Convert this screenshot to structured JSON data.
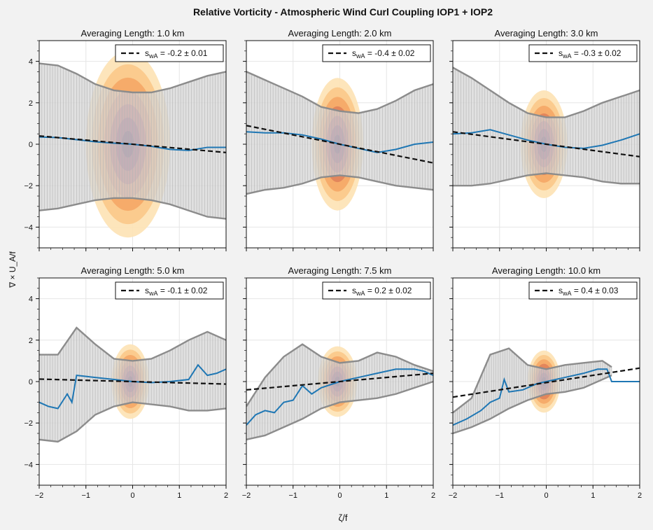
{
  "figure": {
    "title": "Relative Vorticity - Atmospheric Wind Curl Coupling IOP1 + IOP2",
    "xlabel": "ζ/f",
    "ylabel": "∇ × U_A/f"
  },
  "colors": {
    "background": "#f2f2f2",
    "panel": "#ffffff",
    "envelope_fill": "#d6d6d6",
    "envelope_line": "#8c8c8c",
    "mean_line": "#1f77b4",
    "fit_line": "#111111",
    "density": [
      "#fde3b5",
      "#fbc98a",
      "#f5a867",
      "#e1825a",
      "#b85a5c",
      "#8a3d5e",
      "#5c2853"
    ]
  },
  "chart_data": [
    {
      "type": "line",
      "title": "Averaging Length: 1.0 km",
      "legend": {
        "label": "s_wA = -0.2 ± 0.01",
        "symbol": "s",
        "subscript": "wA",
        "text": " = -0.2 ± 0.01",
        "placement": "top-right"
      },
      "xlim": [
        -2,
        2
      ],
      "ylim": [
        -5,
        5
      ],
      "xticks": [
        -2,
        -1,
        0,
        1,
        2
      ],
      "yticks": [
        -4,
        -2,
        0,
        2,
        4
      ],
      "grid": true,
      "fit": {
        "slope": -0.2,
        "intercept": 0.0
      },
      "mean_line": {
        "x": [
          -2,
          -1.6,
          -1.2,
          -0.8,
          -0.4,
          0,
          0.4,
          0.8,
          1.2,
          1.6,
          2
        ],
        "y": [
          0.35,
          0.32,
          0.22,
          0.12,
          0.05,
          0.0,
          -0.1,
          -0.25,
          -0.3,
          -0.15,
          -0.15
        ]
      },
      "envelope": {
        "x": [
          -2,
          -1.6,
          -1.2,
          -0.8,
          -0.4,
          0,
          0.4,
          0.8,
          1.2,
          1.6,
          2
        ],
        "upper": [
          3.9,
          3.8,
          3.4,
          2.9,
          2.6,
          2.5,
          2.5,
          2.7,
          3.0,
          3.3,
          3.5
        ],
        "lower": [
          -3.2,
          -3.1,
          -2.9,
          -2.7,
          -2.6,
          -2.6,
          -2.7,
          -2.9,
          -3.2,
          -3.5,
          -3.6
        ]
      },
      "density": {
        "cx": -0.1,
        "cy": 0.0,
        "rx": 0.9,
        "ry": 4.5
      }
    },
    {
      "type": "line",
      "title": "Averaging Length: 2.0 km",
      "legend": {
        "label": "s_wA = -0.4 ± 0.02",
        "symbol": "s",
        "subscript": "wA",
        "text": " = -0.4 ± 0.02",
        "placement": "top-right"
      },
      "xlim": [
        -2,
        2
      ],
      "ylim": [
        -5,
        5
      ],
      "xticks": [
        -2,
        -1,
        0,
        1,
        2
      ],
      "yticks": [
        -4,
        -2,
        0,
        2,
        4
      ],
      "grid": true,
      "fit": {
        "slope": -0.45,
        "intercept": 0.0
      },
      "mean_line": {
        "x": [
          -2,
          -1.6,
          -1.2,
          -0.8,
          -0.4,
          0,
          0.4,
          0.8,
          1.2,
          1.6,
          2
        ],
        "y": [
          0.6,
          0.55,
          0.55,
          0.45,
          0.25,
          0.0,
          -0.2,
          -0.4,
          -0.25,
          0.0,
          0.1
        ]
      },
      "envelope": {
        "x": [
          -2,
          -1.6,
          -1.2,
          -0.8,
          -0.4,
          0,
          0.4,
          0.8,
          1.2,
          1.6,
          2
        ],
        "upper": [
          3.5,
          3.1,
          2.7,
          2.3,
          1.8,
          1.6,
          1.5,
          1.7,
          2.1,
          2.6,
          2.9
        ],
        "lower": [
          -2.4,
          -2.2,
          -2.1,
          -1.9,
          -1.6,
          -1.5,
          -1.6,
          -1.8,
          -2.0,
          -2.1,
          -2.2
        ]
      },
      "density": {
        "cx": -0.05,
        "cy": 0.0,
        "rx": 0.55,
        "ry": 3.2
      }
    },
    {
      "type": "line",
      "title": "Averaging Length: 3.0 km",
      "legend": {
        "label": "s_wA = -0.3 ± 0.02",
        "symbol": "s",
        "subscript": "wA",
        "text": " = -0.3 ± 0.02",
        "placement": "top-right"
      },
      "xlim": [
        -2,
        2
      ],
      "ylim": [
        -5,
        5
      ],
      "xticks": [
        -2,
        -1,
        0,
        1,
        2
      ],
      "yticks": [
        -4,
        -2,
        0,
        2,
        4
      ],
      "grid": true,
      "fit": {
        "slope": -0.3,
        "intercept": 0.0
      },
      "mean_line": {
        "x": [
          -2,
          -1.6,
          -1.2,
          -0.8,
          -0.4,
          0,
          0.4,
          0.8,
          1.2,
          1.6,
          2
        ],
        "y": [
          0.5,
          0.55,
          0.7,
          0.45,
          0.2,
          0.0,
          -0.15,
          -0.2,
          -0.05,
          0.2,
          0.5
        ]
      },
      "envelope": {
        "x": [
          -2,
          -1.6,
          -1.2,
          -0.8,
          -0.4,
          0,
          0.4,
          0.8,
          1.2,
          1.6,
          2
        ],
        "upper": [
          3.7,
          3.2,
          2.6,
          2.0,
          1.5,
          1.3,
          1.3,
          1.6,
          2.0,
          2.3,
          2.6
        ],
        "lower": [
          -2.0,
          -2.0,
          -1.9,
          -1.7,
          -1.5,
          -1.4,
          -1.5,
          -1.6,
          -1.8,
          -1.9,
          -1.9
        ]
      },
      "density": {
        "cx": -0.05,
        "cy": 0.0,
        "rx": 0.5,
        "ry": 2.6
      }
    },
    {
      "type": "line",
      "title": "Averaging Length: 5.0 km",
      "legend": {
        "label": "s_wA = -0.1 ± 0.02",
        "symbol": "s",
        "subscript": "wA",
        "text": " = -0.1 ± 0.02",
        "placement": "top-right"
      },
      "xlim": [
        -2,
        2
      ],
      "ylim": [
        -5,
        5
      ],
      "xticks": [
        -2,
        -1,
        0,
        1,
        2
      ],
      "yticks": [
        -4,
        -2,
        0,
        2,
        4
      ],
      "grid": true,
      "fit": {
        "slope": -0.06,
        "intercept": 0.0
      },
      "mean_line": {
        "x": [
          -2,
          -1.8,
          -1.6,
          -1.4,
          -1.3,
          -1.2,
          -0.8,
          -0.4,
          0,
          0.4,
          0.8,
          1.2,
          1.4,
          1.6,
          1.8,
          2
        ],
        "y": [
          -1.0,
          -1.2,
          -1.3,
          -0.6,
          -1.0,
          0.3,
          0.2,
          0.1,
          0.0,
          -0.05,
          0.0,
          0.1,
          0.8,
          0.3,
          0.4,
          0.6
        ]
      },
      "envelope": {
        "x": [
          -2,
          -1.6,
          -1.2,
          -0.8,
          -0.4,
          0,
          0.4,
          0.8,
          1.2,
          1.6,
          2
        ],
        "upper": [
          1.3,
          1.3,
          2.6,
          1.8,
          1.1,
          1.0,
          1.1,
          1.5,
          2.0,
          2.4,
          2.0
        ],
        "lower": [
          -2.8,
          -2.9,
          -2.4,
          -1.6,
          -1.2,
          -1.0,
          -1.1,
          -1.2,
          -1.4,
          -1.4,
          -1.3
        ]
      },
      "density": {
        "cx": -0.05,
        "cy": 0.0,
        "rx": 0.4,
        "ry": 1.8
      }
    },
    {
      "type": "line",
      "title": "Averaging Length: 7.5 km",
      "legend": {
        "label": "s_wA = 0.2 ± 0.02",
        "symbol": "s",
        "subscript": "wA",
        "text": " = 0.2 ± 0.02",
        "placement": "top-right"
      },
      "xlim": [
        -2,
        2
      ],
      "ylim": [
        -5,
        5
      ],
      "xticks": [
        -2,
        -1,
        0,
        1,
        2
      ],
      "yticks": [
        -4,
        -2,
        0,
        2,
        4
      ],
      "grid": true,
      "fit": {
        "slope": 0.2,
        "intercept": 0.0
      },
      "mean_line": {
        "x": [
          -2,
          -1.8,
          -1.6,
          -1.4,
          -1.2,
          -1.0,
          -0.8,
          -0.6,
          -0.4,
          0,
          0.4,
          0.8,
          1.2,
          1.6,
          1.8,
          2
        ],
        "y": [
          -2.1,
          -1.6,
          -1.4,
          -1.5,
          -1.0,
          -0.9,
          -0.2,
          -0.6,
          -0.3,
          0.0,
          0.2,
          0.4,
          0.6,
          0.6,
          0.5,
          0.3
        ]
      },
      "envelope": {
        "x": [
          -2,
          -1.6,
          -1.2,
          -0.8,
          -0.4,
          0,
          0.4,
          0.8,
          1.2,
          1.6,
          2
        ],
        "upper": [
          -1.2,
          0.2,
          1.2,
          1.8,
          1.2,
          0.9,
          1.0,
          1.4,
          1.2,
          0.8,
          0.5
        ],
        "lower": [
          -2.8,
          -2.6,
          -2.2,
          -1.8,
          -1.3,
          -1.0,
          -0.9,
          -0.8,
          -0.6,
          -0.3,
          0.0
        ]
      },
      "density": {
        "cx": -0.05,
        "cy": 0.0,
        "rx": 0.42,
        "ry": 1.7
      }
    },
    {
      "type": "line",
      "title": "Averaging Length: 10.0 km",
      "legend": {
        "label": "s_wA = 0.4 ± 0.03",
        "symbol": "s",
        "subscript": "wA",
        "text": " = 0.4 ± 0.03",
        "placement": "top-right"
      },
      "xlim": [
        -2,
        2
      ],
      "ylim": [
        -5,
        5
      ],
      "xticks": [
        -2,
        -1,
        0,
        1,
        2
      ],
      "yticks": [
        -4,
        -2,
        0,
        2,
        4
      ],
      "grid": true,
      "fit": {
        "slope": 0.35,
        "intercept": -0.05
      },
      "mean_line": {
        "x": [
          -2,
          -1.7,
          -1.4,
          -1.2,
          -1.0,
          -0.9,
          -0.8,
          -0.5,
          -0.2,
          0,
          0.4,
          0.8,
          1.1,
          1.3,
          1.4,
          2
        ],
        "y": [
          -2.1,
          -1.8,
          -1.4,
          -1.0,
          -0.8,
          0.1,
          -0.5,
          -0.4,
          -0.1,
          0.0,
          0.2,
          0.4,
          0.6,
          0.6,
          0.0,
          0.0
        ]
      },
      "envelope": {
        "x": [
          -2,
          -1.6,
          -1.2,
          -0.8,
          -0.4,
          0,
          0.4,
          0.8,
          1.2,
          1.4
        ],
        "upper": [
          -1.5,
          -0.8,
          1.3,
          1.6,
          0.8,
          0.6,
          0.8,
          0.9,
          1.0,
          0.7
        ],
        "lower": [
          -2.5,
          -2.2,
          -1.8,
          -1.3,
          -0.9,
          -0.6,
          -0.5,
          -0.3,
          0.1,
          0.3
        ]
      },
      "density": {
        "cx": -0.05,
        "cy": 0.0,
        "rx": 0.35,
        "ry": 1.5
      }
    }
  ]
}
